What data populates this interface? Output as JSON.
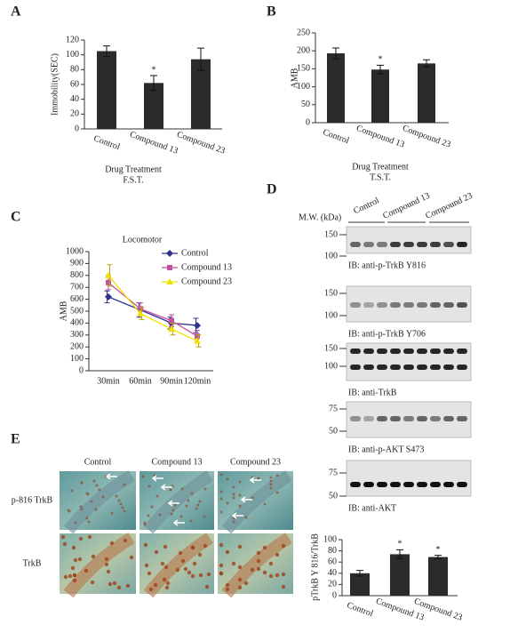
{
  "chart_data": [
    {
      "type": "bar",
      "panel_label": "A",
      "ylabel": "Immobility(SEC)",
      "xlabel": "Drug Treatment",
      "subtitle": "F.S.T.",
      "categories": [
        "Control",
        "Compound 13",
        "Compound 23"
      ],
      "values": [
        105,
        62,
        94
      ],
      "errors": [
        7,
        10,
        15
      ],
      "markers": [
        null,
        "*",
        null
      ],
      "color": "#2b2b2b",
      "ylim": [
        0,
        120
      ],
      "yticks": [
        0,
        20,
        40,
        60,
        80,
        100,
        120
      ]
    },
    {
      "type": "bar",
      "panel_label": "B",
      "ylabel": "AMB",
      "xlabel": "Drug Treatment",
      "subtitle": "T.S.T.",
      "categories": [
        "Control",
        "Compound 13",
        "Compound 23"
      ],
      "values": [
        193,
        148,
        165
      ],
      "errors": [
        15,
        12,
        10
      ],
      "markers": [
        null,
        "*",
        null
      ],
      "color": "#2b2b2b",
      "ylim": [
        0,
        250
      ],
      "yticks": [
        0,
        50,
        100,
        150,
        200,
        250
      ]
    },
    {
      "type": "line",
      "panel_label": "C",
      "title": "Locomotor",
      "ylabel": "AMB",
      "categories": [
        "30min",
        "60min",
        "90min",
        "120min"
      ],
      "series": [
        {
          "name": "Control",
          "color": "#2e3192",
          "marker": "diamond",
          "values": [
            620,
            510,
            400,
            380
          ],
          "errors": [
            50,
            60,
            50,
            60
          ]
        },
        {
          "name": "Compound 13",
          "color": "#c050a0",
          "marker": "square",
          "values": [
            740,
            520,
            420,
            290
          ],
          "errors": [
            60,
            50,
            50,
            50
          ]
        },
        {
          "name": "Compound 23",
          "color": "#f0e000",
          "marker": "triangle",
          "values": [
            800,
            480,
            350,
            250
          ],
          "errors": [
            90,
            50,
            50,
            50
          ]
        }
      ],
      "ylim": [
        0,
        1000
      ],
      "yticks": [
        0,
        100,
        200,
        300,
        400,
        500,
        600,
        700,
        800,
        900,
        1000
      ]
    },
    {
      "type": "bar",
      "ylabel": "pTrkB Y 816/TrkB",
      "categories": [
        "Control",
        "Compound 13",
        "Compound 23"
      ],
      "values": [
        40,
        74,
        69
      ],
      "errors": [
        5,
        8,
        3
      ],
      "markers": [
        null,
        "*",
        "*"
      ],
      "color": "#2b2b2b",
      "ylim": [
        0,
        100
      ],
      "yticks": [
        0,
        20,
        40,
        60,
        80,
        100
      ]
    }
  ],
  "blots": {
    "panel_label": "D",
    "mw_label": "M.W. (kDa)",
    "groups": [
      "Control",
      "Compound 13",
      "Compound 23"
    ],
    "items": [
      {
        "markers": [
          "150",
          "100"
        ],
        "label": "IB: anti-p-TrkB Y816"
      },
      {
        "markers": [
          "150",
          "100"
        ],
        "label": "IB: anti-p-TrkB Y706"
      },
      {
        "markers": [
          "150",
          "100"
        ],
        "label": "IB: anti-TrkB"
      },
      {
        "markers": [
          "75",
          "50"
        ],
        "label": "IB: anti-p-AKT S473"
      },
      {
        "markers": [
          "75",
          "50"
        ],
        "label": "IB: anti-AKT"
      }
    ]
  },
  "staining": {
    "panel_label": "E",
    "columns": [
      "Control",
      "Compound 13",
      "Compound 23"
    ],
    "rows": [
      "p-816 TrkB",
      "TrkB"
    ]
  }
}
